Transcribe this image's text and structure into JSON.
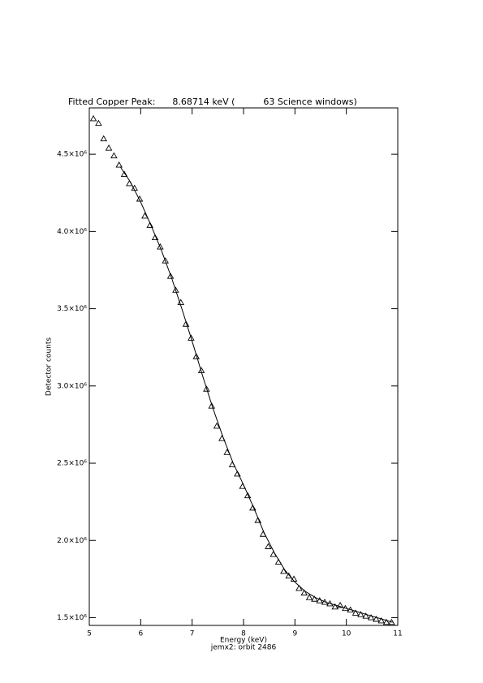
{
  "chart_data": {
    "type": "scatter",
    "title": "Fitted Copper Peak:      8.68714 keV (          63 Science windows)",
    "x_label": "Energy (keV)",
    "subtitle": "jemx2: orbit 2486",
    "y_label": "Detector counts",
    "xlim": [
      5,
      11
    ],
    "xticks": [
      5,
      6,
      7,
      8,
      9,
      10,
      11
    ],
    "ylim": [
      1450000,
      4800000
    ],
    "yticks": [
      {
        "value": 1500000,
        "label": "1.5×10⁶"
      },
      {
        "value": 2000000,
        "label": "2.0×10⁶"
      },
      {
        "value": 2500000,
        "label": "2.5×10⁶"
      },
      {
        "value": 3000000,
        "label": "3.0×10⁶"
      },
      {
        "value": 3500000,
        "label": "3.5×10⁶"
      },
      {
        "value": 4000000,
        "label": "4.0×10⁶"
      },
      {
        "value": 4500000,
        "label": "4.5×10⁶"
      }
    ],
    "color": "#000000",
    "series": [
      {
        "style": "markers",
        "marker": "triangle",
        "color": "#000000",
        "x": [
          5.08,
          5.18,
          5.28,
          5.38,
          5.48,
          5.58,
          5.68,
          5.78,
          5.88,
          5.98,
          6.08,
          6.18,
          6.28,
          6.38,
          6.48,
          6.58,
          6.68,
          6.78,
          6.88,
          6.98,
          7.08,
          7.18,
          7.28,
          7.38,
          7.48,
          7.58,
          7.68,
          7.78,
          7.88,
          7.98,
          8.08,
          8.18,
          8.28,
          8.38,
          8.48,
          8.58,
          8.68,
          8.78,
          8.88,
          8.98,
          9.08,
          9.18,
          9.28,
          9.38,
          9.48,
          9.58,
          9.68,
          9.78,
          9.88,
          9.98,
          10.08,
          10.18,
          10.28,
          10.38,
          10.48,
          10.58,
          10.68,
          10.78,
          10.88
        ],
        "values": [
          4730000,
          4700000,
          4600000,
          4540000,
          4490000,
          4430000,
          4370000,
          4310000,
          4280000,
          4210000,
          4100000,
          4040000,
          3960000,
          3900000,
          3810000,
          3710000,
          3620000,
          3540000,
          3400000,
          3310000,
          3190000,
          3100000,
          2980000,
          2870000,
          2740000,
          2660000,
          2570000,
          2490000,
          2430000,
          2350000,
          2290000,
          2210000,
          2130000,
          2040000,
          1960000,
          1910000,
          1860000,
          1800000,
          1770000,
          1750000,
          1690000,
          1660000,
          1630000,
          1620000,
          1610000,
          1600000,
          1590000,
          1570000,
          1580000,
          1560000,
          1550000,
          1530000,
          1520000,
          1510000,
          1500000,
          1490000,
          1480000,
          1470000,
          1470000
        ]
      },
      {
        "style": "line",
        "color": "#000000",
        "x": [
          5.6,
          5.8,
          6.0,
          6.2,
          6.4,
          6.6,
          6.8,
          7.0,
          7.2,
          7.4,
          7.6,
          7.8,
          8.0,
          8.2,
          8.4,
          8.6,
          8.8,
          9.0,
          9.2,
          9.4,
          9.6,
          9.8,
          10.0,
          10.2,
          10.4,
          10.6,
          10.8,
          10.9
        ],
        "values": [
          4420000,
          4320000,
          4190000,
          4040000,
          3880000,
          3700000,
          3500000,
          3290000,
          3070000,
          2860000,
          2670000,
          2500000,
          2360000,
          2210000,
          2050000,
          1920000,
          1810000,
          1730000,
          1670000,
          1630000,
          1600000,
          1580000,
          1560000,
          1540000,
          1520000,
          1500000,
          1480000,
          1470000
        ]
      }
    ]
  }
}
